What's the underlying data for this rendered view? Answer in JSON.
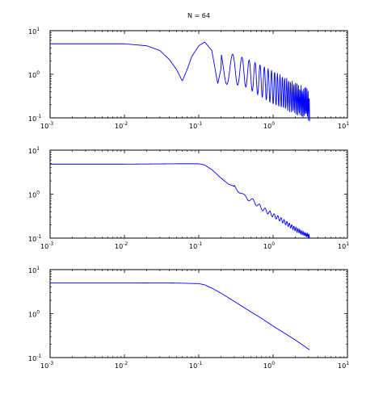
{
  "figure": {
    "title": "N = 64",
    "line_color": "#0000ff"
  },
  "chart_data": [
    {
      "type": "line",
      "scale": "loglog",
      "title": "N = 64",
      "xlabel": "",
      "ylabel": "",
      "xlim": [
        0.001,
        10
      ],
      "ylim": [
        0.1,
        10
      ],
      "x_ticks": [
        "10^-3",
        "10^-2",
        "10^-1",
        "10^0",
        "10^1"
      ],
      "y_ticks": [
        "10^-1",
        "10^0",
        "10^1"
      ],
      "grid": false,
      "series": [
        {
          "color": "#0000ff",
          "x": [
            0.001,
            0.01,
            0.02,
            0.03,
            0.04,
            0.05,
            0.06,
            0.07,
            0.08,
            0.1,
            0.12,
            0.15,
            0.18,
            0.22,
            0.27,
            0.33,
            0.4,
            0.5,
            0.6,
            0.7,
            0.8,
            1.0,
            1.2,
            1.5,
            2.0,
            2.5,
            3.1
          ],
          "y": [
            5.0,
            5.0,
            4.5,
            3.5,
            2.2,
            1.3,
            0.7,
            1.3,
            2.5,
            4.5,
            5.5,
            3.5,
            0.6,
            3.0,
            0.8,
            2.0,
            0.8,
            1.5,
            0.8,
            1.3,
            0.3,
            1.0,
            0.25,
            0.7,
            0.15,
            0.5,
            0.12
          ],
          "envelope_upper": [
            [
              0.2,
              3.5
            ],
            [
              0.4,
              2.4
            ],
            [
              0.7,
              1.6
            ],
            [
              1.0,
              1.2
            ],
            [
              2.0,
              0.65
            ],
            [
              3.1,
              0.45
            ]
          ],
          "envelope_lower": [
            [
              0.2,
              0.6
            ],
            [
              0.4,
              0.55
            ],
            [
              0.7,
              0.3
            ],
            [
              1.0,
              0.2
            ],
            [
              2.0,
              0.12
            ],
            [
              3.1,
              0.08
            ]
          ]
        }
      ]
    },
    {
      "type": "line",
      "scale": "loglog",
      "title": "",
      "xlabel": "",
      "ylabel": "",
      "xlim": [
        0.001,
        10
      ],
      "ylim": [
        0.1,
        10
      ],
      "x_ticks": [
        "10^-3",
        "10^-2",
        "10^-1",
        "10^0",
        "10^1"
      ],
      "y_ticks": [
        "10^-1",
        "10^0",
        "10^1"
      ],
      "grid": false,
      "series": [
        {
          "color": "#0000ff",
          "x": [
            0.001,
            0.01,
            0.05,
            0.1,
            0.12,
            0.15,
            0.2,
            0.25,
            0.3,
            0.35,
            0.4,
            0.5,
            0.6,
            0.7,
            0.8,
            1.0,
            1.2,
            1.5,
            2.0,
            2.5,
            3.1
          ],
          "y": [
            4.8,
            4.8,
            4.9,
            4.9,
            4.6,
            3.6,
            2.3,
            1.7,
            1.5,
            1.2,
            0.9,
            0.75,
            0.6,
            0.48,
            0.42,
            0.33,
            0.28,
            0.22,
            0.16,
            0.13,
            0.11
          ],
          "ripple_start": 0.3,
          "ripple_amplitude_ratio": 1.25
        }
      ]
    },
    {
      "type": "line",
      "scale": "loglog",
      "title": "",
      "xlabel": "",
      "ylabel": "",
      "xlim": [
        0.001,
        10
      ],
      "ylim": [
        0.1,
        10
      ],
      "x_ticks": [
        "10^-3",
        "10^-2",
        "10^-1",
        "10^0",
        "10^1"
      ],
      "y_ticks": [
        "10^-1",
        "10^0",
        "10^1"
      ],
      "grid": false,
      "series": [
        {
          "color": "#0000ff",
          "x": [
            0.001,
            0.01,
            0.05,
            0.1,
            0.12,
            0.15,
            0.2,
            0.3,
            0.5,
            0.7,
            1.0,
            1.5,
            2.0,
            3.1
          ],
          "y": [
            5.0,
            5.0,
            4.95,
            4.8,
            4.5,
            3.8,
            2.9,
            1.9,
            1.1,
            0.78,
            0.52,
            0.34,
            0.25,
            0.15
          ]
        }
      ]
    }
  ]
}
